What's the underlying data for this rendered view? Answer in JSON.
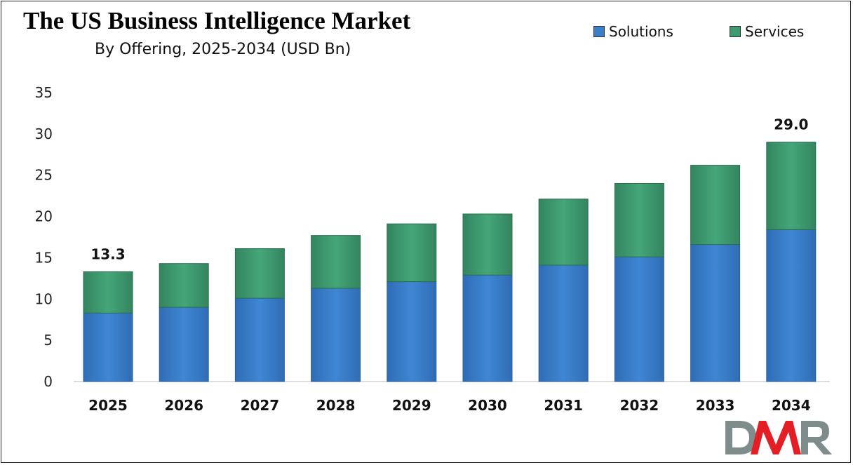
{
  "chart_data": {
    "type": "bar",
    "stacked": true,
    "title": "The US Business Intelligence Market",
    "subtitle": "By Offering, 2025-2034 (USD Bn)",
    "categories": [
      "2025",
      "2026",
      "2027",
      "2028",
      "2029",
      "2030",
      "2031",
      "2032",
      "2033",
      "2034"
    ],
    "series": [
      {
        "name": "Solutions",
        "color": "#3A7DC9",
        "values": [
          8.3,
          9.0,
          10.1,
          11.3,
          12.1,
          12.9,
          14.1,
          15.1,
          16.6,
          18.4
        ]
      },
      {
        "name": "Services",
        "color": "#3E9A70",
        "values": [
          5.0,
          5.3,
          6.0,
          6.4,
          7.0,
          7.4,
          8.0,
          8.9,
          9.6,
          10.6
        ]
      }
    ],
    "totals_labels": [
      {
        "category": "2025",
        "label": "13.3"
      },
      {
        "category": "2034",
        "label": "29.0"
      }
    ],
    "ylim": [
      0,
      35
    ],
    "yticks": [
      "0",
      "5",
      "10",
      "15",
      "20",
      "25",
      "30",
      "35"
    ],
    "grid": false,
    "legend_position": "top-right",
    "xlabel": "",
    "ylabel": ""
  },
  "logo": {
    "text": "DMR",
    "colors": [
      "#7f8c8c",
      "#e31e24"
    ]
  }
}
